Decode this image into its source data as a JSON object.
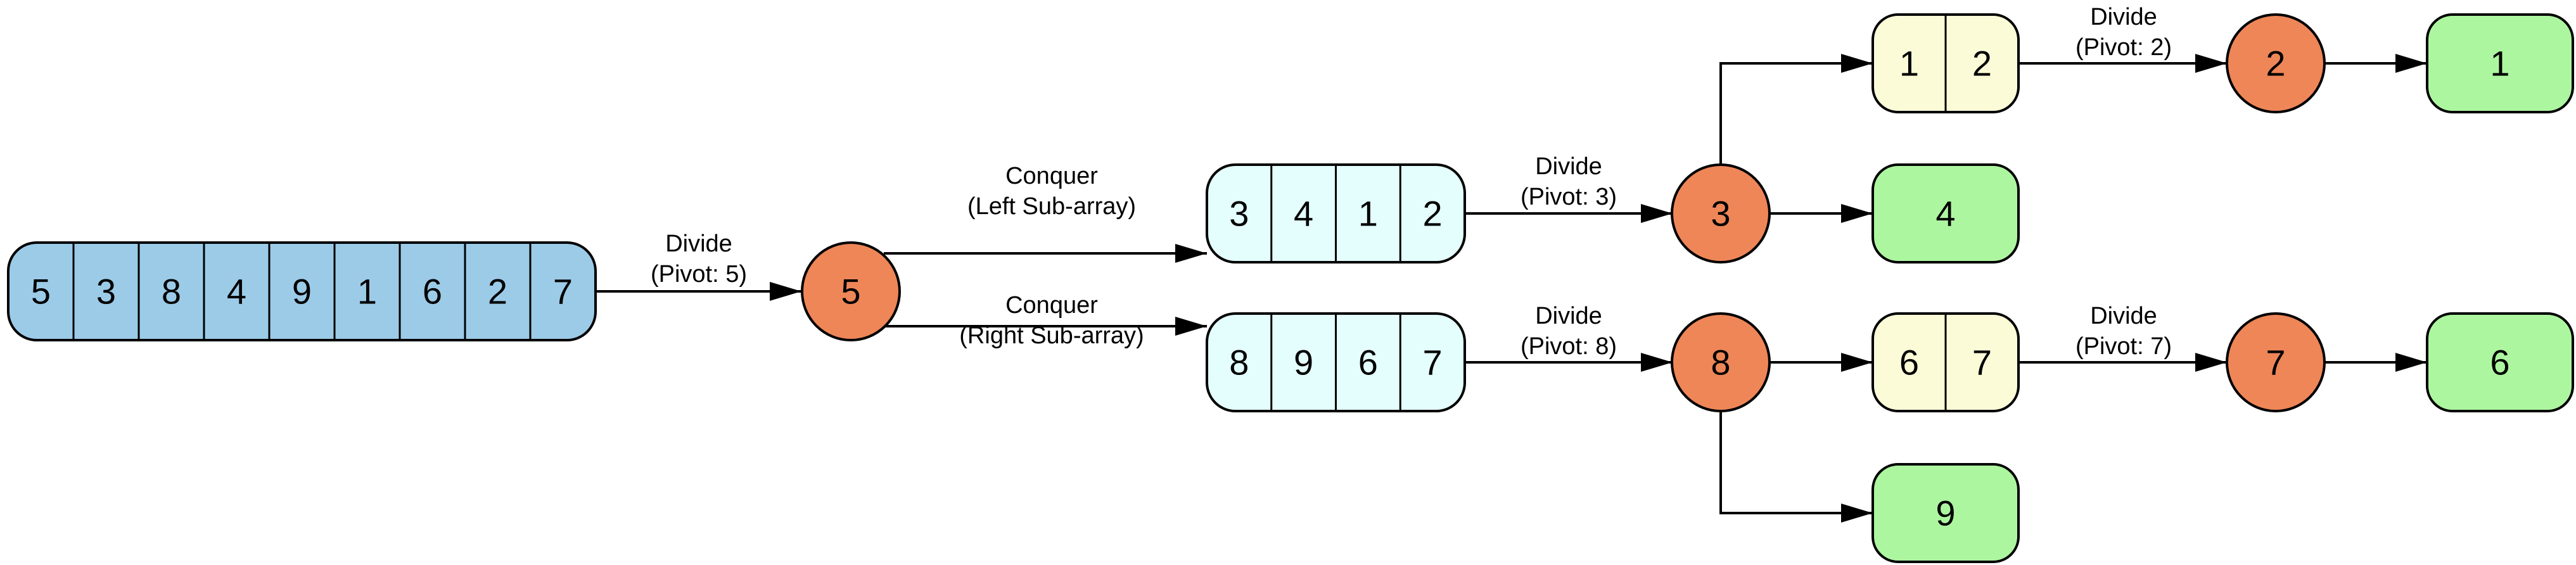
{
  "colors": {
    "root_array": "#9ccbe8",
    "subarray": "#e4fdfd",
    "small_array": "#fbfbd8",
    "pivot": "#ee8658",
    "leaf": "#adf6a0",
    "stroke": "#000000"
  },
  "arrays": {
    "root": [
      "5",
      "3",
      "8",
      "4",
      "9",
      "1",
      "6",
      "2",
      "7"
    ],
    "left": [
      "3",
      "4",
      "1",
      "2"
    ],
    "right": [
      "8",
      "9",
      "6",
      "7"
    ],
    "left_small": [
      "1",
      "2"
    ],
    "right_small": [
      "6",
      "7"
    ]
  },
  "pivots": {
    "p5": "5",
    "p3": "3",
    "p8": "8",
    "p2": "2",
    "p7": "7"
  },
  "leaves": {
    "l1": "1",
    "l4": "4",
    "l6": "6",
    "l9": "9"
  },
  "edge_labels": {
    "divide_5": [
      "Divide",
      "(Pivot: 5)"
    ],
    "conquer_left": [
      "Conquer",
      "(Left Sub-array)"
    ],
    "conquer_right": [
      "Conquer",
      "(Right Sub-array)"
    ],
    "divide_3": [
      "Divide",
      "(Pivot: 3)"
    ],
    "divide_8": [
      "Divide",
      "(Pivot: 8)"
    ],
    "divide_2": [
      "Divide",
      "(Pivot: 2)"
    ],
    "divide_7": [
      "Divide",
      "(Pivot: 7)"
    ]
  }
}
